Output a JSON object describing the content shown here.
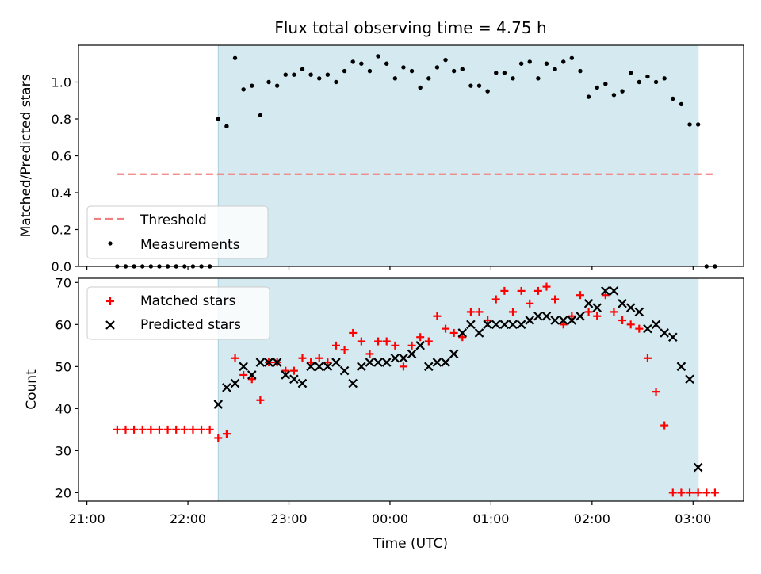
{
  "chart_data": {
    "type": "scatter",
    "title": "Flux total observing time = 4.75 h",
    "xlabel": "Time (UTC)",
    "x_ticks": [
      "21:00",
      "22:00",
      "23:00",
      "00:00",
      "01:00",
      "02:00",
      "03:00"
    ],
    "colors": {
      "span": "#d5eaf0",
      "threshold": "#f08080",
      "measurements": "#000000",
      "matched": "#ff0000",
      "predicted": "#000000"
    },
    "observing_window": {
      "start": "22:18",
      "end": "03:03"
    },
    "panels": [
      {
        "id": "ratio",
        "ylabel": "Matched/Predicted stars",
        "ylim": [
          0,
          1.2
        ],
        "yticks": [
          "0.0",
          "0.2",
          "0.4",
          "0.6",
          "0.8",
          "1.0"
        ],
        "legend": "lower-left",
        "threshold": {
          "name": "Threshold",
          "value": 0.5,
          "x_range": [
            "21:18",
            "03:12"
          ]
        },
        "series": [
          {
            "name": "Measurements",
            "marker": "dot",
            "x": [
              "21:18",
              "21:23",
              "21:28",
              "21:33",
              "21:38",
              "21:43",
              "21:48",
              "21:53",
              "21:58",
              "22:03",
              "22:08",
              "22:13",
              "22:18",
              "22:23",
              "22:28",
              "22:33",
              "22:38",
              "22:43",
              "22:48",
              "22:53",
              "22:58",
              "23:03",
              "23:08",
              "23:13",
              "23:18",
              "23:23",
              "23:28",
              "23:33",
              "23:38",
              "23:43",
              "23:48",
              "23:53",
              "23:58",
              "00:03",
              "00:08",
              "00:13",
              "00:18",
              "00:23",
              "00:28",
              "00:33",
              "00:38",
              "00:43",
              "00:48",
              "00:53",
              "00:58",
              "01:03",
              "01:08",
              "01:13",
              "01:18",
              "01:23",
              "01:28",
              "01:33",
              "01:38",
              "01:43",
              "01:48",
              "01:53",
              "01:58",
              "02:03",
              "02:08",
              "02:13",
              "02:18",
              "02:23",
              "02:28",
              "02:33",
              "02:38",
              "02:43",
              "02:48",
              "02:53",
              "02:58",
              "03:03",
              "03:08",
              "03:13"
            ],
            "values": [
              0,
              0,
              0,
              0,
              0,
              0,
              0,
              0,
              0,
              0,
              0,
              0,
              0.8,
              0.76,
              1.13,
              0.96,
              0.98,
              0.82,
              1.0,
              0.98,
              1.04,
              1.04,
              1.07,
              1.04,
              1.02,
              1.04,
              1.0,
              1.06,
              1.11,
              1.1,
              1.06,
              1.14,
              1.1,
              1.02,
              1.08,
              1.06,
              0.97,
              1.02,
              1.08,
              1.12,
              1.06,
              1.07,
              0.98,
              0.98,
              0.95,
              1.05,
              1.05,
              1.02,
              1.1,
              1.11,
              1.02,
              1.1,
              1.07,
              1.11,
              1.13,
              1.06,
              0.92,
              0.97,
              0.99,
              0.93,
              0.95,
              1.05,
              1.0,
              1.03,
              1.0,
              1.02,
              0.91,
              0.88,
              0.77,
              0.77,
              0,
              0
            ]
          }
        ]
      },
      {
        "id": "count",
        "ylabel": "Count",
        "ylim": [
          18,
          71
        ],
        "yticks": [
          "20",
          "30",
          "40",
          "50",
          "60",
          "70"
        ],
        "legend": "upper-left",
        "series": [
          {
            "name": "Matched stars",
            "marker": "+",
            "x": [
              "21:18",
              "21:23",
              "21:28",
              "21:33",
              "21:38",
              "21:43",
              "21:48",
              "21:53",
              "21:58",
              "22:03",
              "22:08",
              "22:13",
              "22:18",
              "22:23",
              "22:28",
              "22:33",
              "22:38",
              "22:43",
              "22:48",
              "22:53",
              "22:58",
              "23:03",
              "23:08",
              "23:13",
              "23:18",
              "23:23",
              "23:28",
              "23:33",
              "23:38",
              "23:43",
              "23:48",
              "23:53",
              "23:58",
              "00:03",
              "00:08",
              "00:13",
              "00:18",
              "00:23",
              "00:28",
              "00:33",
              "00:38",
              "00:43",
              "00:48",
              "00:53",
              "00:58",
              "01:03",
              "01:08",
              "01:13",
              "01:18",
              "01:23",
              "01:28",
              "01:33",
              "01:38",
              "01:43",
              "01:48",
              "01:53",
              "01:58",
              "02:03",
              "02:08",
              "02:13",
              "02:18",
              "02:23",
              "02:28",
              "02:33",
              "02:38",
              "02:43",
              "02:48",
              "02:53",
              "02:58",
              "03:03",
              "03:08",
              "03:13"
            ],
            "values": [
              35,
              35,
              35,
              35,
              35,
              35,
              35,
              35,
              35,
              35,
              35,
              35,
              33,
              34,
              52,
              48,
              47,
              42,
              51,
              51,
              49,
              49,
              52,
              51,
              52,
              51,
              55,
              54,
              58,
              56,
              53,
              56,
              56,
              55,
              50,
              55,
              57,
              56,
              62,
              59,
              58,
              57,
              63,
              63,
              61,
              66,
              68,
              63,
              68,
              65,
              68,
              69,
              66,
              60,
              62,
              67,
              63,
              62,
              67,
              63,
              61,
              60,
              59,
              52,
              44,
              36,
              20,
              20,
              20,
              20,
              20,
              20
            ]
          },
          {
            "name": "Predicted stars",
            "marker": "x",
            "x": [
              "22:18",
              "22:23",
              "22:28",
              "22:33",
              "22:38",
              "22:43",
              "22:48",
              "22:53",
              "22:58",
              "23:03",
              "23:08",
              "23:13",
              "23:18",
              "23:23",
              "23:28",
              "23:33",
              "23:38",
              "23:43",
              "23:48",
              "23:53",
              "23:58",
              "00:03",
              "00:08",
              "00:13",
              "00:18",
              "00:23",
              "00:28",
              "00:33",
              "00:38",
              "00:43",
              "00:48",
              "00:53",
              "00:58",
              "01:03",
              "01:08",
              "01:13",
              "01:18",
              "01:23",
              "01:28",
              "01:33",
              "01:38",
              "01:43",
              "01:48",
              "01:53",
              "01:58",
              "02:03",
              "02:08",
              "02:13",
              "02:18",
              "02:23",
              "02:28",
              "02:33",
              "02:38",
              "02:43",
              "02:48",
              "02:53",
              "02:58",
              "03:03"
            ],
            "values": [
              41,
              45,
              46,
              50,
              48,
              51,
              51,
              51,
              48,
              47,
              46,
              50,
              50,
              50,
              51,
              49,
              46,
              50,
              51,
              51,
              51,
              52,
              52,
              53,
              55,
              50,
              51,
              51,
              53,
              58,
              60,
              58,
              60,
              60,
              60,
              60,
              60,
              61,
              62,
              62,
              61,
              61,
              61,
              62,
              65,
              64,
              68,
              68,
              65,
              64,
              63,
              59,
              60,
              58,
              57,
              50,
              47,
              26
            ]
          }
        ]
      }
    ]
  }
}
